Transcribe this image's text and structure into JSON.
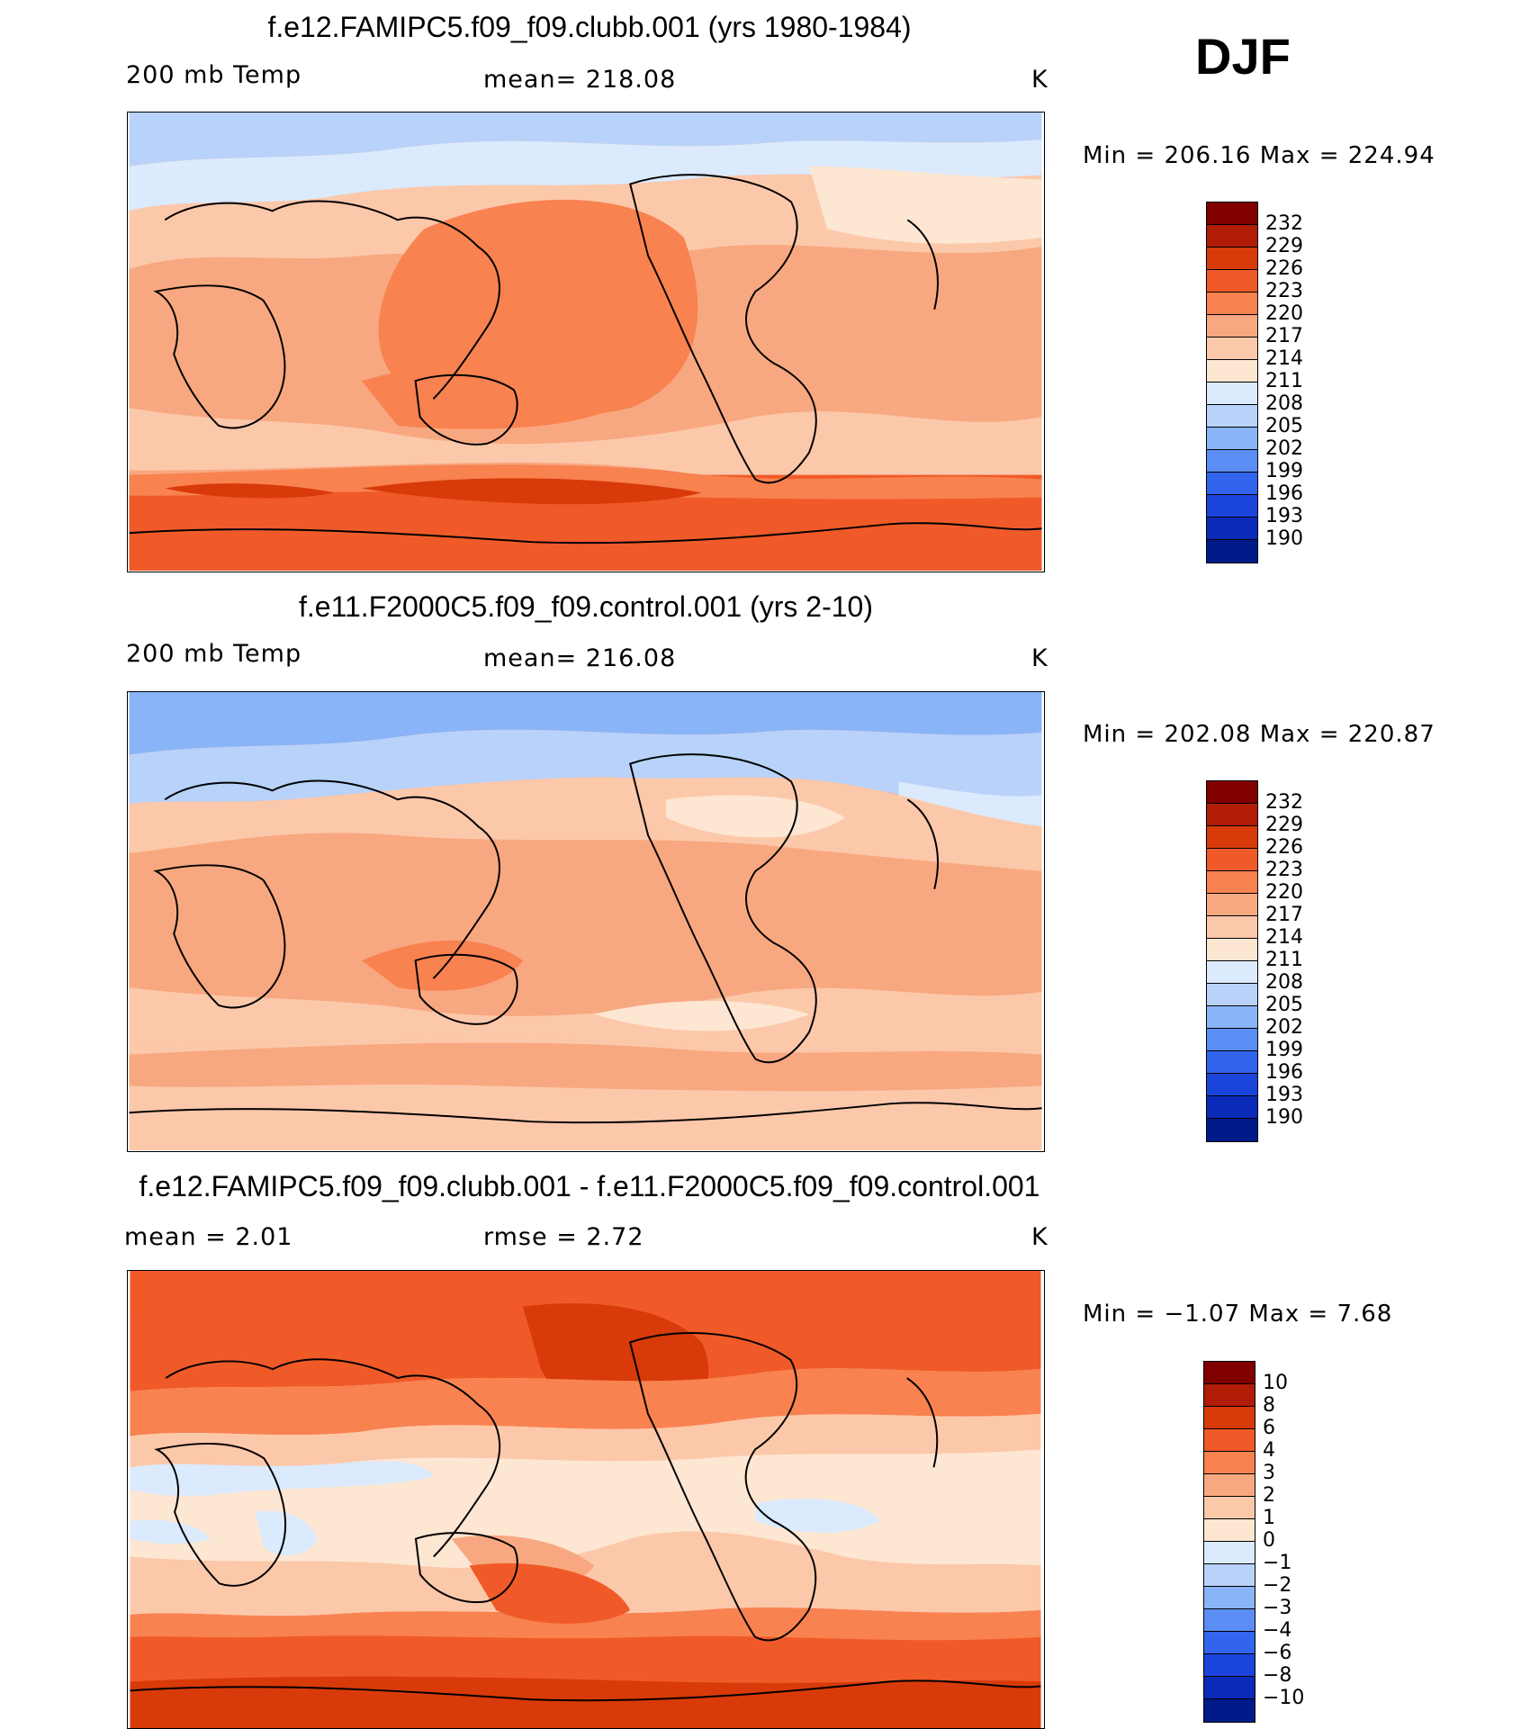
{
  "season": "DJF",
  "colors": {
    "abs_palette": [
      "#800000",
      "#b01c05",
      "#d83a0a",
      "#f05a28",
      "#f88250",
      "#f8a880",
      "#fcc8aa",
      "#fde6d2",
      "#dbeafc",
      "#b8d2fa",
      "#8ab4f8",
      "#5a8ef4",
      "#3264ee",
      "#1a44dc",
      "#0a2ab8",
      "#001a8a"
    ],
    "diff_palette": [
      "#800000",
      "#b01c05",
      "#d83a0a",
      "#f05a28",
      "#f88250",
      "#f8a880",
      "#fcc8aa",
      "#fde6d2",
      "#dbeafc",
      "#b8d2fa",
      "#8ab4f8",
      "#5a8ef4",
      "#3264ee",
      "#1a44dc",
      "#0a2ab8",
      "#001a8a"
    ]
  },
  "panels": [
    {
      "title": "f.e12.FAMIPC5.f09_f09.clubb.001 (yrs 1980-1984)",
      "left_label": "200  mb  Temp",
      "center_label": "mean=  218.08",
      "units": "K",
      "minmax": "Min  =  206.16  Max  =  224.94",
      "colorbar_labels": [
        "232",
        "229",
        "226",
        "223",
        "220",
        "217",
        "214",
        "211",
        "208",
        "205",
        "202",
        "199",
        "196",
        "193",
        "190"
      ]
    },
    {
      "title": "f.e11.F2000C5.f09_f09.control.001 (yrs 2-10)",
      "left_label": "200  mb  Temp",
      "center_label": "mean=  216.08",
      "units": "K",
      "minmax": "Min  =  202.08  Max  =  220.87",
      "colorbar_labels": [
        "232",
        "229",
        "226",
        "223",
        "220",
        "217",
        "214",
        "211",
        "208",
        "205",
        "202",
        "199",
        "196",
        "193",
        "190"
      ]
    },
    {
      "title": "f.e12.FAMIPC5.f09_f09.clubb.001 - f.e11.F2000C5.f09_f09.control.001",
      "left_label": "mean  =      2.01",
      "center_label": "rmse  =      2.72",
      "units": "K",
      "minmax": "Min  =    −1.07  Max  =      7.68",
      "colorbar_labels": [
        "10",
        "8",
        "6",
        "4",
        "3",
        "2",
        "1",
        "0",
        "−1",
        "−2",
        "−3",
        "−4",
        "−6",
        "−8",
        "−10"
      ]
    }
  ]
}
